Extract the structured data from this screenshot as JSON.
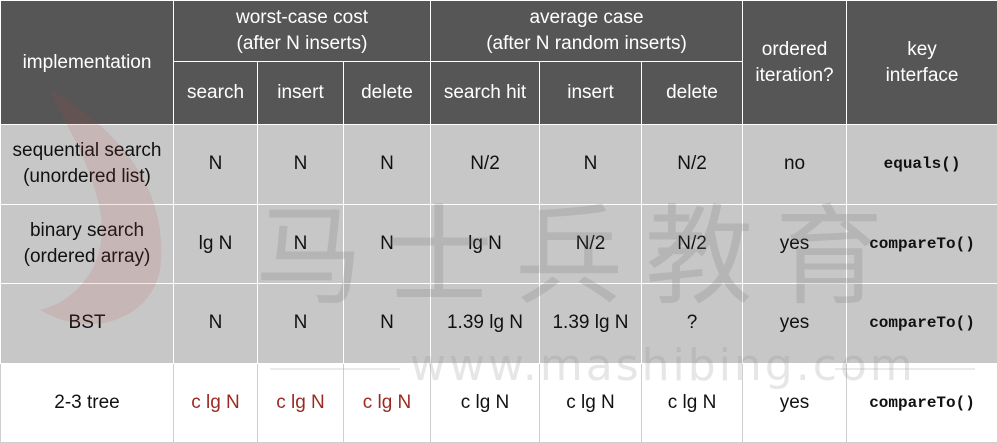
{
  "header": {
    "implementation": "implementation",
    "worst_case_line1": "worst-case cost",
    "worst_case_line2": "(after N inserts)",
    "average_case_line1": "average case",
    "average_case_line2": "(after N random inserts)",
    "ordered_line1": "ordered",
    "ordered_line2": "iteration?",
    "key_line1": "key",
    "key_line2": "interface",
    "sub": [
      "search",
      "insert",
      "delete",
      "search hit",
      "insert",
      "delete"
    ]
  },
  "rows": [
    {
      "impl_line1": "sequential search",
      "impl_line2": "(unordered list)",
      "worst_search": "N",
      "worst_insert": "N",
      "worst_delete": "N",
      "avg_search_hit": "N/2",
      "avg_insert": "N",
      "avg_delete": "N/2",
      "ordered": "no",
      "key": "equals()"
    },
    {
      "impl_line1": "binary search",
      "impl_line2": "(ordered array)",
      "worst_search": "lg N",
      "worst_insert": "N",
      "worst_delete": "N",
      "avg_search_hit": "lg N",
      "avg_insert": "N/2",
      "avg_delete": "N/2",
      "ordered": "yes",
      "key": "compareTo()"
    },
    {
      "impl_line1": "BST",
      "impl_line2": "",
      "worst_search": "N",
      "worst_insert": "N",
      "worst_delete": "N",
      "avg_search_hit": "1.39 lg N",
      "avg_insert": "1.39 lg N",
      "avg_delete": "?",
      "ordered": "yes",
      "key": "compareTo()"
    },
    {
      "impl_line1": "2-3 tree",
      "impl_line2": "",
      "worst_search": "c lg N",
      "worst_insert": "c lg N",
      "worst_delete": "c lg N",
      "avg_search_hit": "c lg N",
      "avg_insert": "c lg N",
      "avg_delete": "c lg N",
      "ordered": "yes",
      "key": "compareTo()"
    }
  ],
  "watermark": {
    "text": "马士兵教育",
    "url": "www.mashibing.com"
  },
  "colors": {
    "header_bg": "#565656",
    "row_gray": "#c7c7c7",
    "highlight_red": "#9c2a23"
  }
}
